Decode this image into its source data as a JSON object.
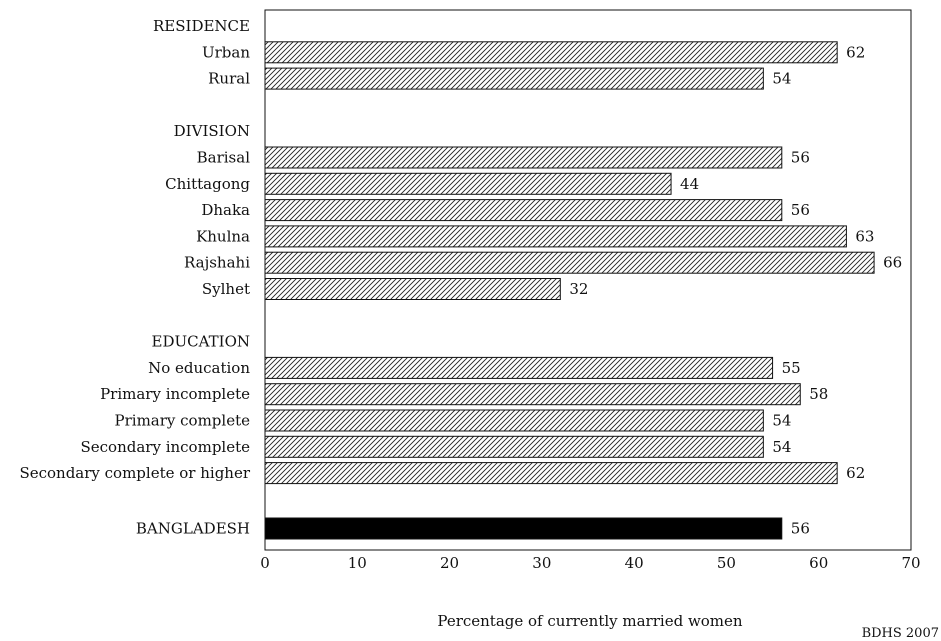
{
  "chart_data": {
    "type": "bar",
    "orientation": "horizontal",
    "xlabel": "Percentage of currently married women",
    "xlim": [
      0,
      70
    ],
    "xticks": [
      0,
      10,
      20,
      30,
      40,
      50,
      60,
      70
    ],
    "grid": false,
    "source_note": "BDHS 2007",
    "colors": {
      "bar_hatched": "#ffffff",
      "hatch_line": "#222222",
      "total_bar": "#000000"
    },
    "groups": [
      {
        "name": "RESIDENCE",
        "items": [
          {
            "label": "Urban",
            "value": 62
          },
          {
            "label": "Rural",
            "value": 54
          }
        ]
      },
      {
        "name": "DIVISION",
        "items": [
          {
            "label": "Barisal",
            "value": 56
          },
          {
            "label": "Chittagong",
            "value": 44
          },
          {
            "label": "Dhaka",
            "value": 56
          },
          {
            "label": "Khulna",
            "value": 63
          },
          {
            "label": "Rajshahi",
            "value": 66
          },
          {
            "label": "Sylhet",
            "value": 32
          }
        ]
      },
      {
        "name": "EDUCATION",
        "items": [
          {
            "label": "No education",
            "value": 55
          },
          {
            "label": "Primary incomplete",
            "value": 58
          },
          {
            "label": "Primary complete",
            "value": 54
          },
          {
            "label": "Secondary incomplete",
            "value": 54
          },
          {
            "label": "Secondary complete or higher",
            "value": 62
          }
        ]
      }
    ],
    "total": {
      "label": "BANGLADESH",
      "value": 56
    }
  }
}
